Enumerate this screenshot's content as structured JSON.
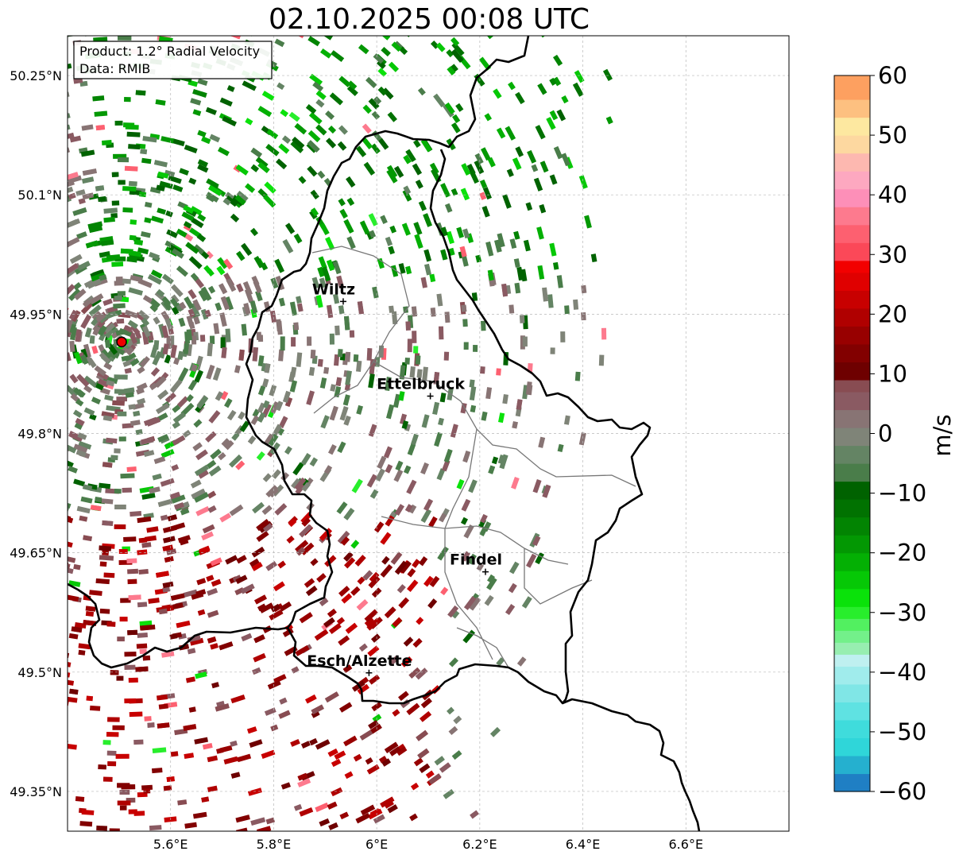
{
  "title": "02.10.2025 00:08 UTC",
  "info": {
    "product": "Product: 1.2° Radial Velocity",
    "data": "Data: RMIB"
  },
  "axes": {
    "lon_min": 5.4,
    "lon_max": 6.8,
    "lat_min": 49.3,
    "lat_max": 50.3,
    "x_ticks": [
      {
        "value": 5.6,
        "label": "5.6°E"
      },
      {
        "value": 5.8,
        "label": "5.8°E"
      },
      {
        "value": 6.0,
        "label": "6°E"
      },
      {
        "value": 6.2,
        "label": "6.2°E"
      },
      {
        "value": 6.4,
        "label": "6.4°E"
      },
      {
        "value": 6.6,
        "label": "6.6°E"
      }
    ],
    "y_ticks": [
      {
        "value": 49.35,
        "label": "49.35°N"
      },
      {
        "value": 49.5,
        "label": "49.5°N"
      },
      {
        "value": 49.65,
        "label": "49.65°N"
      },
      {
        "value": 49.8,
        "label": "49.8°N"
      },
      {
        "value": 49.95,
        "label": "49.95°N"
      },
      {
        "value": 50.1,
        "label": "50.1°N"
      },
      {
        "value": 50.25,
        "label": "50.25°N"
      }
    ],
    "grid": true
  },
  "radar_site": {
    "lon": 5.505,
    "lat": 49.915
  },
  "cities": [
    {
      "name": "Wiltz",
      "lon": 5.935,
      "lat": 49.966
    },
    {
      "name": "Ettelbruck",
      "lon": 6.104,
      "lat": 49.847
    },
    {
      "name": "Findel",
      "lon": 6.211,
      "lat": 49.626
    },
    {
      "name": "Esch/Alzette",
      "lon": 5.985,
      "lat": 49.499
    }
  ],
  "colorbar": {
    "label": "m/s",
    "min": -60,
    "max": 60,
    "ticks": [
      {
        "value": 60,
        "label": "60"
      },
      {
        "value": 50,
        "label": "50"
      },
      {
        "value": 40,
        "label": "40"
      },
      {
        "value": 30,
        "label": "30"
      },
      {
        "value": 20,
        "label": "20"
      },
      {
        "value": 10,
        "label": "10"
      },
      {
        "value": 0,
        "label": "0"
      },
      {
        "value": -10,
        "label": "−10"
      },
      {
        "value": -20,
        "label": "−20"
      },
      {
        "value": -30,
        "label": "−30"
      },
      {
        "value": -40,
        "label": "−40"
      },
      {
        "value": -50,
        "label": "−50"
      },
      {
        "value": -60,
        "label": "−60"
      }
    ],
    "segments": [
      {
        "from": -60,
        "to": -57,
        "color": "#1f7fc4"
      },
      {
        "from": -57,
        "to": -54,
        "color": "#25b0cf"
      },
      {
        "from": -54,
        "to": -51,
        "color": "#2fd6d9"
      },
      {
        "from": -51,
        "to": -48,
        "color": "#3fdcdc"
      },
      {
        "from": -48,
        "to": -45,
        "color": "#5fe2e2"
      },
      {
        "from": -45,
        "to": -42,
        "color": "#80e6e6"
      },
      {
        "from": -42,
        "to": -39,
        "color": "#a0ecec"
      },
      {
        "from": -39,
        "to": -37,
        "color": "#bff0f0"
      },
      {
        "from": -37,
        "to": -35,
        "color": "#97eeb0"
      },
      {
        "from": -35,
        "to": -33,
        "color": "#73f08a"
      },
      {
        "from": -33,
        "to": -31,
        "color": "#52f060"
      },
      {
        "from": -31,
        "to": -29,
        "color": "#28ee2c"
      },
      {
        "from": -29,
        "to": -26,
        "color": "#0ae20a"
      },
      {
        "from": -26,
        "to": -23,
        "color": "#06c806"
      },
      {
        "from": -23,
        "to": -20,
        "color": "#04b004"
      },
      {
        "from": -20,
        "to": -17,
        "color": "#039803"
      },
      {
        "from": -17,
        "to": -14,
        "color": "#028402"
      },
      {
        "from": -14,
        "to": -11,
        "color": "#017201"
      },
      {
        "from": -11,
        "to": -8,
        "color": "#006200"
      },
      {
        "from": -8,
        "to": -5,
        "color": "#4a7d4a"
      },
      {
        "from": -5,
        "to": -2,
        "color": "#648464"
      },
      {
        "from": -2,
        "to": 1,
        "color": "#7f8478"
      },
      {
        "from": 1,
        "to": 4,
        "color": "#887474"
      },
      {
        "from": 4,
        "to": 7,
        "color": "#8a5a62"
      },
      {
        "from": 7,
        "to": 9,
        "color": "#884c52"
      },
      {
        "from": 9,
        "to": 12,
        "color": "#6e0000"
      },
      {
        "from": 12,
        "to": 15,
        "color": "#820000"
      },
      {
        "from": 15,
        "to": 18,
        "color": "#980000"
      },
      {
        "from": 18,
        "to": 21,
        "color": "#b00000"
      },
      {
        "from": 21,
        "to": 24,
        "color": "#c80000"
      },
      {
        "from": 24,
        "to": 27,
        "color": "#e00000"
      },
      {
        "from": 27,
        "to": 29,
        "color": "#f20000"
      },
      {
        "from": 29,
        "to": 32,
        "color": "#fb4858"
      },
      {
        "from": 32,
        "to": 35,
        "color": "#fd6070"
      },
      {
        "from": 35,
        "to": 38,
        "color": "#fd7a8e"
      },
      {
        "from": 38,
        "to": 41,
        "color": "#fd8fb8"
      },
      {
        "from": 41,
        "to": 44,
        "color": "#fda8c0"
      },
      {
        "from": 44,
        "to": 47,
        "color": "#fdb8b0"
      },
      {
        "from": 47,
        "to": 50,
        "color": "#fdd8a0"
      },
      {
        "from": 50,
        "to": 53,
        "color": "#fde8a0"
      },
      {
        "from": 53,
        "to": 56,
        "color": "#fdc080"
      },
      {
        "from": 56,
        "to": 60,
        "color": "#fda060"
      }
    ]
  }
}
